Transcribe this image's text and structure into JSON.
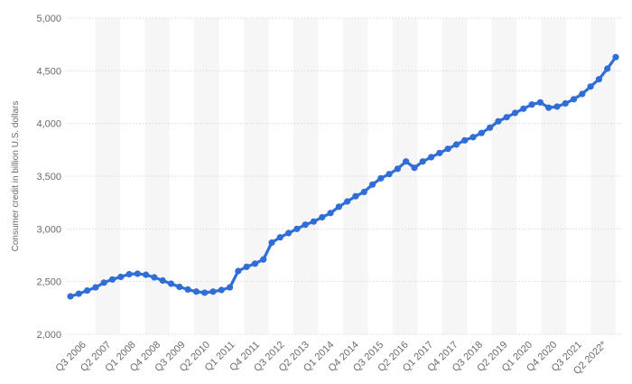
{
  "chart_data": {
    "type": "line",
    "ylabel": "Consumer credit in billion U.S. dollars",
    "ylim": [
      2000,
      5000
    ],
    "yticks": [
      2000,
      2500,
      3000,
      3500,
      4000,
      4500,
      5000
    ],
    "ytick_labels": [
      "2,000",
      "2,500",
      "3,000",
      "3,500",
      "4,000",
      "4,500",
      "5,000"
    ],
    "x_tick_labels": [
      "Q3 2006",
      "Q2 2007",
      "Q1 2008",
      "Q4 2008",
      "Q3 2009",
      "Q2 2010",
      "Q1 2011",
      "Q4 2011",
      "Q3 2012",
      "Q2 2013",
      "Q1 2014",
      "Q4 2014",
      "Q3 2015",
      "Q2 2016",
      "Q1 2017",
      "Q4 2017",
      "Q3 2018",
      "Q2 2019",
      "Q1 2020",
      "Q4 2020",
      "Q3 2021",
      "Q2 2022*"
    ],
    "grid": true,
    "color": "#2f6ed6",
    "series": [
      {
        "values": [
          2360,
          2385,
          2415,
          2445,
          2490,
          2520,
          2545,
          2570,
          2575,
          2565,
          2540,
          2510,
          2480,
          2450,
          2425,
          2405,
          2395,
          2405,
          2420,
          2445,
          2600,
          2640,
          2670,
          2710,
          2870,
          2920,
          2960,
          3000,
          3040,
          3070,
          3110,
          3150,
          3210,
          3260,
          3310,
          3350,
          3420,
          3480,
          3520,
          3570,
          3640,
          3580,
          3640,
          3680,
          3720,
          3760,
          3800,
          3840,
          3870,
          3910,
          3960,
          4020,
          4060,
          4100,
          4140,
          4180,
          4200,
          4150,
          4160,
          4190,
          4230,
          4280,
          4350,
          4420,
          4520,
          4630
        ]
      }
    ]
  }
}
